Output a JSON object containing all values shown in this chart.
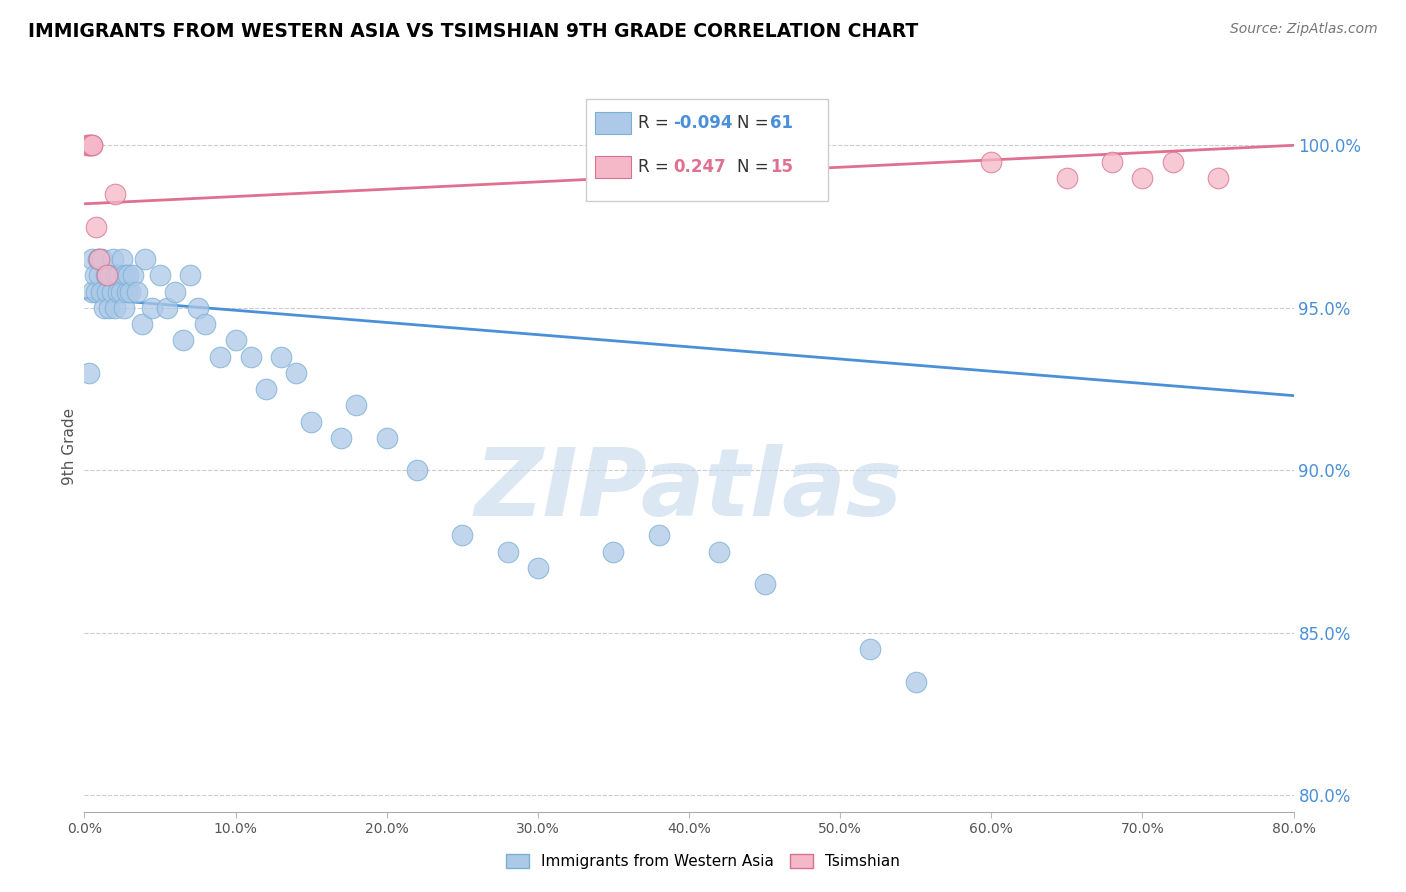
{
  "title": "IMMIGRANTS FROM WESTERN ASIA VS TSIMSHIAN 9TH GRADE CORRELATION CHART",
  "source": "Source: ZipAtlas.com",
  "ylabel": "9th Grade",
  "ylabel_right_ticks": [
    80.0,
    85.0,
    90.0,
    95.0,
    100.0
  ],
  "xmin": 0.0,
  "xmax": 80.0,
  "ymin": 79.5,
  "ymax": 102.0,
  "blue_r": -0.094,
  "blue_n": 61,
  "pink_r": 0.247,
  "pink_n": 15,
  "blue_color": "#adc9e8",
  "blue_line_color": "#4a90d9",
  "blue_edge_color": "#7aafd4",
  "pink_color": "#f5b8c8",
  "pink_line_color": "#e07090",
  "pink_edge_color": "#d87090",
  "blue_scatter_x": [
    0.3,
    0.5,
    0.5,
    0.7,
    0.8,
    0.9,
    1.0,
    1.0,
    1.1,
    1.2,
    1.3,
    1.4,
    1.5,
    1.5,
    1.6,
    1.7,
    1.8,
    1.9,
    2.0,
    2.1,
    2.2,
    2.3,
    2.4,
    2.5,
    2.6,
    2.7,
    2.8,
    2.9,
    3.0,
    3.2,
    3.5,
    3.8,
    4.0,
    4.5,
    5.0,
    5.5,
    6.0,
    6.5,
    7.0,
    7.5,
    8.0,
    9.0,
    10.0,
    11.0,
    12.0,
    13.0,
    14.0,
    15.0,
    17.0,
    18.0,
    20.0,
    22.0,
    25.0,
    28.0,
    30.0,
    35.0,
    38.0,
    42.0,
    45.0,
    52.0,
    55.0
  ],
  "blue_scatter_y": [
    93.0,
    96.5,
    95.5,
    96.0,
    95.5,
    96.5,
    96.0,
    96.5,
    95.5,
    96.5,
    95.0,
    96.0,
    95.5,
    96.0,
    95.0,
    96.0,
    95.5,
    96.5,
    95.0,
    96.0,
    95.5,
    96.0,
    95.5,
    96.5,
    95.0,
    96.0,
    95.5,
    96.0,
    95.5,
    96.0,
    95.5,
    94.5,
    96.5,
    95.0,
    96.0,
    95.0,
    95.5,
    94.0,
    96.0,
    95.0,
    94.5,
    93.5,
    94.0,
    93.5,
    92.5,
    93.5,
    93.0,
    91.5,
    91.0,
    92.0,
    91.0,
    90.0,
    88.0,
    87.5,
    87.0,
    87.5,
    88.0,
    87.5,
    86.5,
    84.5,
    83.5
  ],
  "pink_scatter_x": [
    0.2,
    0.3,
    0.4,
    0.5,
    0.5,
    0.8,
    1.0,
    1.5,
    2.0,
    60.0,
    65.0,
    68.0,
    70.0,
    72.0,
    75.0
  ],
  "pink_scatter_y": [
    100.0,
    100.0,
    100.0,
    100.0,
    100.0,
    97.5,
    96.5,
    96.0,
    98.5,
    99.5,
    99.0,
    99.5,
    99.0,
    99.5,
    99.0
  ],
  "watermark_text": "ZIPatlas",
  "watermark_color": "#c5d8ed",
  "legend_blue_label": "Immigrants from Western Asia",
  "legend_pink_label": "Tsimshian"
}
